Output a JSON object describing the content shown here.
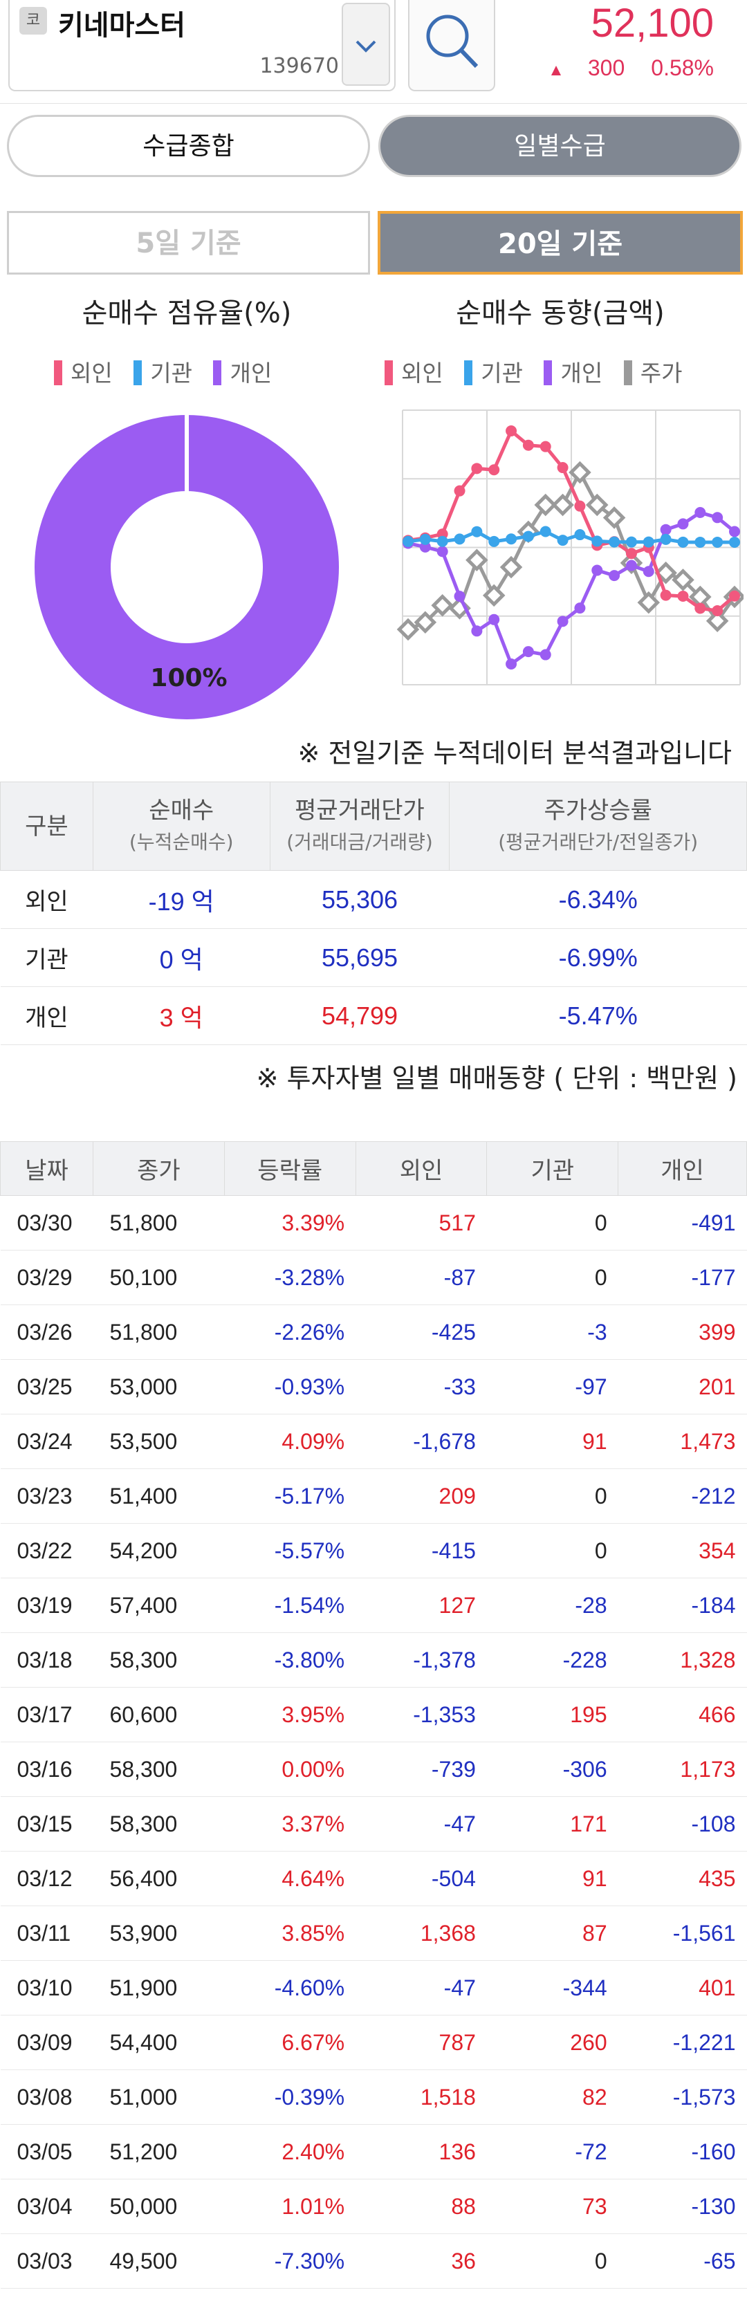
{
  "header": {
    "market_badge": "코",
    "stock_name": "키네마스터",
    "stock_code": "139670",
    "price": "52,100",
    "change": "300",
    "change_pct": "0.58%",
    "accent_color": "#e0315a"
  },
  "tabs": {
    "main": [
      "수급종합",
      "일별수급"
    ],
    "period": [
      "5일 기준",
      "20일 기준"
    ]
  },
  "donut": {
    "title": "순매수 점유율(%)",
    "legend": [
      "외인",
      "기관",
      "개인"
    ],
    "colors": [
      "#f1587e",
      "#3aa4ea",
      "#9b5cf2"
    ],
    "share_label": "100%",
    "share": 1.0
  },
  "trend": {
    "title": "순매수 동향(금액)",
    "legend": [
      "외인",
      "기관",
      "개인",
      "주가"
    ],
    "colors": [
      "#f1587e",
      "#3aa4ea",
      "#9b5cf2",
      "#9a9a9a"
    ]
  },
  "notes": {
    "analysis": "※ 전일기준 누적데이터 분석결과입니다",
    "daily": "※ 투자자별 일별 매매동향 ( 단위 : 백만원 )"
  },
  "summary": {
    "headers": [
      {
        "main": "구분",
        "sub": ""
      },
      {
        "main": "순매수",
        "sub": "(누적순매수)"
      },
      {
        "main": "평균거래단가",
        "sub": "(거래대금/거래량)"
      },
      {
        "main": "주가상승률",
        "sub": "(평균거래단가/전일종가)"
      }
    ],
    "rows": [
      {
        "name": "외인",
        "net": "-19 억",
        "net_dir": "dn",
        "avg": "55,306",
        "avg_dir": "dn",
        "rate": "-6.34%"
      },
      {
        "name": "기관",
        "net": "0 억",
        "net_dir": "dn",
        "avg": "55,695",
        "avg_dir": "dn",
        "rate": "-6.99%"
      },
      {
        "name": "개인",
        "net": "3 억",
        "net_dir": "up",
        "avg": "54,799",
        "avg_dir": "up",
        "rate": "-5.47%"
      }
    ]
  },
  "daily": {
    "headers": [
      "날짜",
      "종가",
      "등락률",
      "외인",
      "기관",
      "개인"
    ],
    "rows": [
      [
        "03/30",
        "51,800",
        "3.39%",
        "517",
        "0",
        "-491"
      ],
      [
        "03/29",
        "50,100",
        "-3.28%",
        "-87",
        "0",
        "-177"
      ],
      [
        "03/26",
        "51,800",
        "-2.26%",
        "-425",
        "-3",
        "399"
      ],
      [
        "03/25",
        "53,000",
        "-0.93%",
        "-33",
        "-97",
        "201"
      ],
      [
        "03/24",
        "53,500",
        "4.09%",
        "-1,678",
        "91",
        "1,473"
      ],
      [
        "03/23",
        "51,400",
        "-5.17%",
        "209",
        "0",
        "-212"
      ],
      [
        "03/22",
        "54,200",
        "-5.57%",
        "-415",
        "0",
        "354"
      ],
      [
        "03/19",
        "57,400",
        "-1.54%",
        "127",
        "-28",
        "-184"
      ],
      [
        "03/18",
        "58,300",
        "-3.80%",
        "-1,378",
        "-228",
        "1,328"
      ],
      [
        "03/17",
        "60,600",
        "3.95%",
        "-1,353",
        "195",
        "466"
      ],
      [
        "03/16",
        "58,300",
        "0.00%",
        "-739",
        "-306",
        "1,173"
      ],
      [
        "03/15",
        "58,300",
        "3.37%",
        "-47",
        "171",
        "-108"
      ],
      [
        "03/12",
        "56,400",
        "4.64%",
        "-504",
        "91",
        "435"
      ],
      [
        "03/11",
        "53,900",
        "3.85%",
        "1,368",
        "87",
        "-1,561"
      ],
      [
        "03/10",
        "51,900",
        "-4.60%",
        "-47",
        "-344",
        "401"
      ],
      [
        "03/09",
        "54,400",
        "6.67%",
        "787",
        "260",
        "-1,221"
      ],
      [
        "03/08",
        "51,000",
        "-0.39%",
        "1,518",
        "82",
        "-1,573"
      ],
      [
        "03/05",
        "51,200",
        "2.40%",
        "136",
        "-72",
        "-160"
      ],
      [
        "03/04",
        "50,000",
        "1.01%",
        "88",
        "73",
        "-130"
      ],
      [
        "03/03",
        "49,500",
        "-7.30%",
        "36",
        "0",
        "-65"
      ]
    ]
  },
  "chart_data": {
    "type": "line",
    "x": [
      "03/03",
      "03/04",
      "03/05",
      "03/08",
      "03/09",
      "03/10",
      "03/11",
      "03/12",
      "03/15",
      "03/16",
      "03/17",
      "03/18",
      "03/19",
      "03/22",
      "03/23",
      "03/24",
      "03/25",
      "03/26",
      "03/29",
      "03/30"
    ],
    "series": [
      {
        "name": "외인",
        "values": [
          36,
          124,
          260,
          1778,
          2565,
          2518,
          3886,
          3382,
          3335,
          2596,
          1243,
          -135,
          -8,
          -423,
          -214,
          -1892,
          -1925,
          -2350,
          -2437,
          -1920
        ]
      },
      {
        "name": "기관",
        "values": [
          0,
          73,
          1,
          83,
          343,
          -1,
          86,
          177,
          348,
          42,
          237,
          9,
          -19,
          -19,
          -19,
          72,
          -25,
          -28,
          -28,
          -28
        ]
      },
      {
        "name": "개인",
        "values": [
          -65,
          -195,
          -355,
          -1928,
          -3149,
          -2748,
          -4309,
          -3874,
          -3982,
          -2809,
          -2343,
          -1015,
          -1199,
          -845,
          -1057,
          416,
          617,
          1016,
          839,
          348
        ]
      },
      {
        "name": "주가",
        "values": [
          49500,
          50000,
          51200,
          51000,
          54400,
          51900,
          53900,
          56400,
          58300,
          58300,
          60600,
          58300,
          57400,
          54200,
          51400,
          53500,
          53000,
          51800,
          50100,
          51800
        ]
      }
    ]
  }
}
